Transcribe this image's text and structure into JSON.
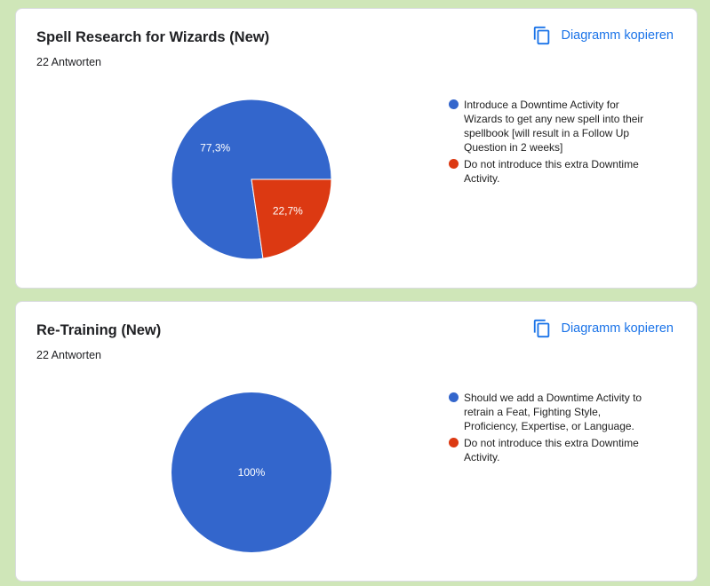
{
  "copy_label": "Diagramm kopieren",
  "colors": {
    "blue": "#3366cc",
    "red": "#dc3912",
    "accent": "#1a73e8",
    "background": "#cfe6b8"
  },
  "icons": {
    "copy": "copy-icon"
  },
  "cards": [
    {
      "title": "Spell Research for Wizards (New)",
      "responses": "22 Antworten",
      "legend": [
        "Introduce a Downtime Activity for Wizards to get any new spell into their spellbook [will result in a Follow Up Question in 2 weeks]",
        "Do not introduce this extra Downtime Activity."
      ]
    },
    {
      "title": "Re-Training (New)",
      "responses": "22 Antworten",
      "legend": [
        "Should we add a Downtime Activity to retrain a Feat, Fighting Style, Proficiency, Expertise, or Language.",
        "Do not introduce this extra Downtime Activity."
      ]
    }
  ],
  "chart_data": [
    {
      "type": "pie",
      "categories": [
        "Introduce a Downtime Activity for Wizards to get any new spell into their spellbook [will result in a Follow Up Question in 2 weeks]",
        "Do not introduce this extra Downtime Activity."
      ],
      "values": [
        77.3,
        22.7
      ],
      "labels": [
        "77,3%",
        "22,7%"
      ],
      "colors": [
        "#3366cc",
        "#dc3912"
      ],
      "legend_position": "right"
    },
    {
      "type": "pie",
      "categories": [
        "Should we add a Downtime Activity to retrain a Feat, Fighting Style, Proficiency, Expertise, or Language.",
        "Do not introduce this extra Downtime Activity."
      ],
      "values": [
        100,
        0
      ],
      "labels": [
        "100%",
        ""
      ],
      "colors": [
        "#3366cc",
        "#dc3912"
      ],
      "legend_position": "right"
    }
  ]
}
